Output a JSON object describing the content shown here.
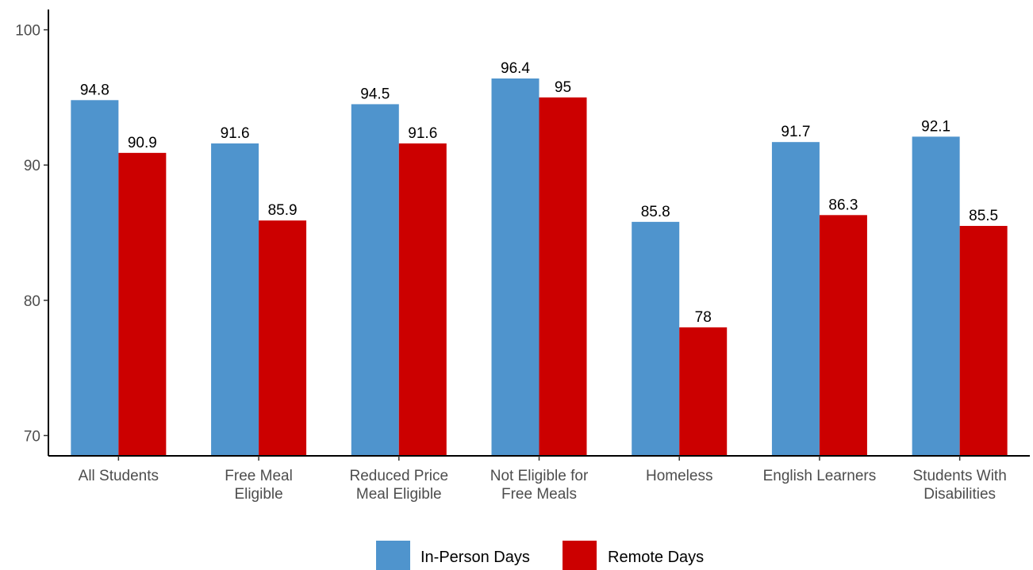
{
  "chart_data": {
    "type": "bar",
    "categories": [
      [
        "All Students"
      ],
      [
        "Free Meal",
        "Eligible"
      ],
      [
        "Reduced Price",
        "Meal Eligible"
      ],
      [
        "Not Eligible for",
        "Free Meals"
      ],
      [
        "Homeless"
      ],
      [
        "English Learners"
      ],
      [
        "Students With",
        "Disabilities"
      ]
    ],
    "series": [
      {
        "name": "In-Person Days",
        "color": "#4f94cd",
        "values": [
          94.8,
          91.6,
          94.5,
          96.4,
          85.8,
          91.7,
          92.1
        ]
      },
      {
        "name": "Remote Days",
        "color": "#cc0000",
        "values": [
          90.9,
          85.9,
          91.6,
          95,
          78,
          86.3,
          85.5
        ]
      }
    ],
    "data_labels": [
      [
        "94.8",
        "91.6",
        "94.5",
        "96.4",
        "85.8",
        "91.7",
        "92.1"
      ],
      [
        "90.9",
        "85.9",
        "91.6",
        "95",
        "78",
        "86.3",
        "85.5"
      ]
    ],
    "yticks": [
      70,
      80,
      90,
      100
    ],
    "ylim": [
      68.5,
      101.5
    ],
    "title": "",
    "xlabel": "",
    "ylabel": "",
    "grid": false,
    "legend_position": "bottom"
  }
}
